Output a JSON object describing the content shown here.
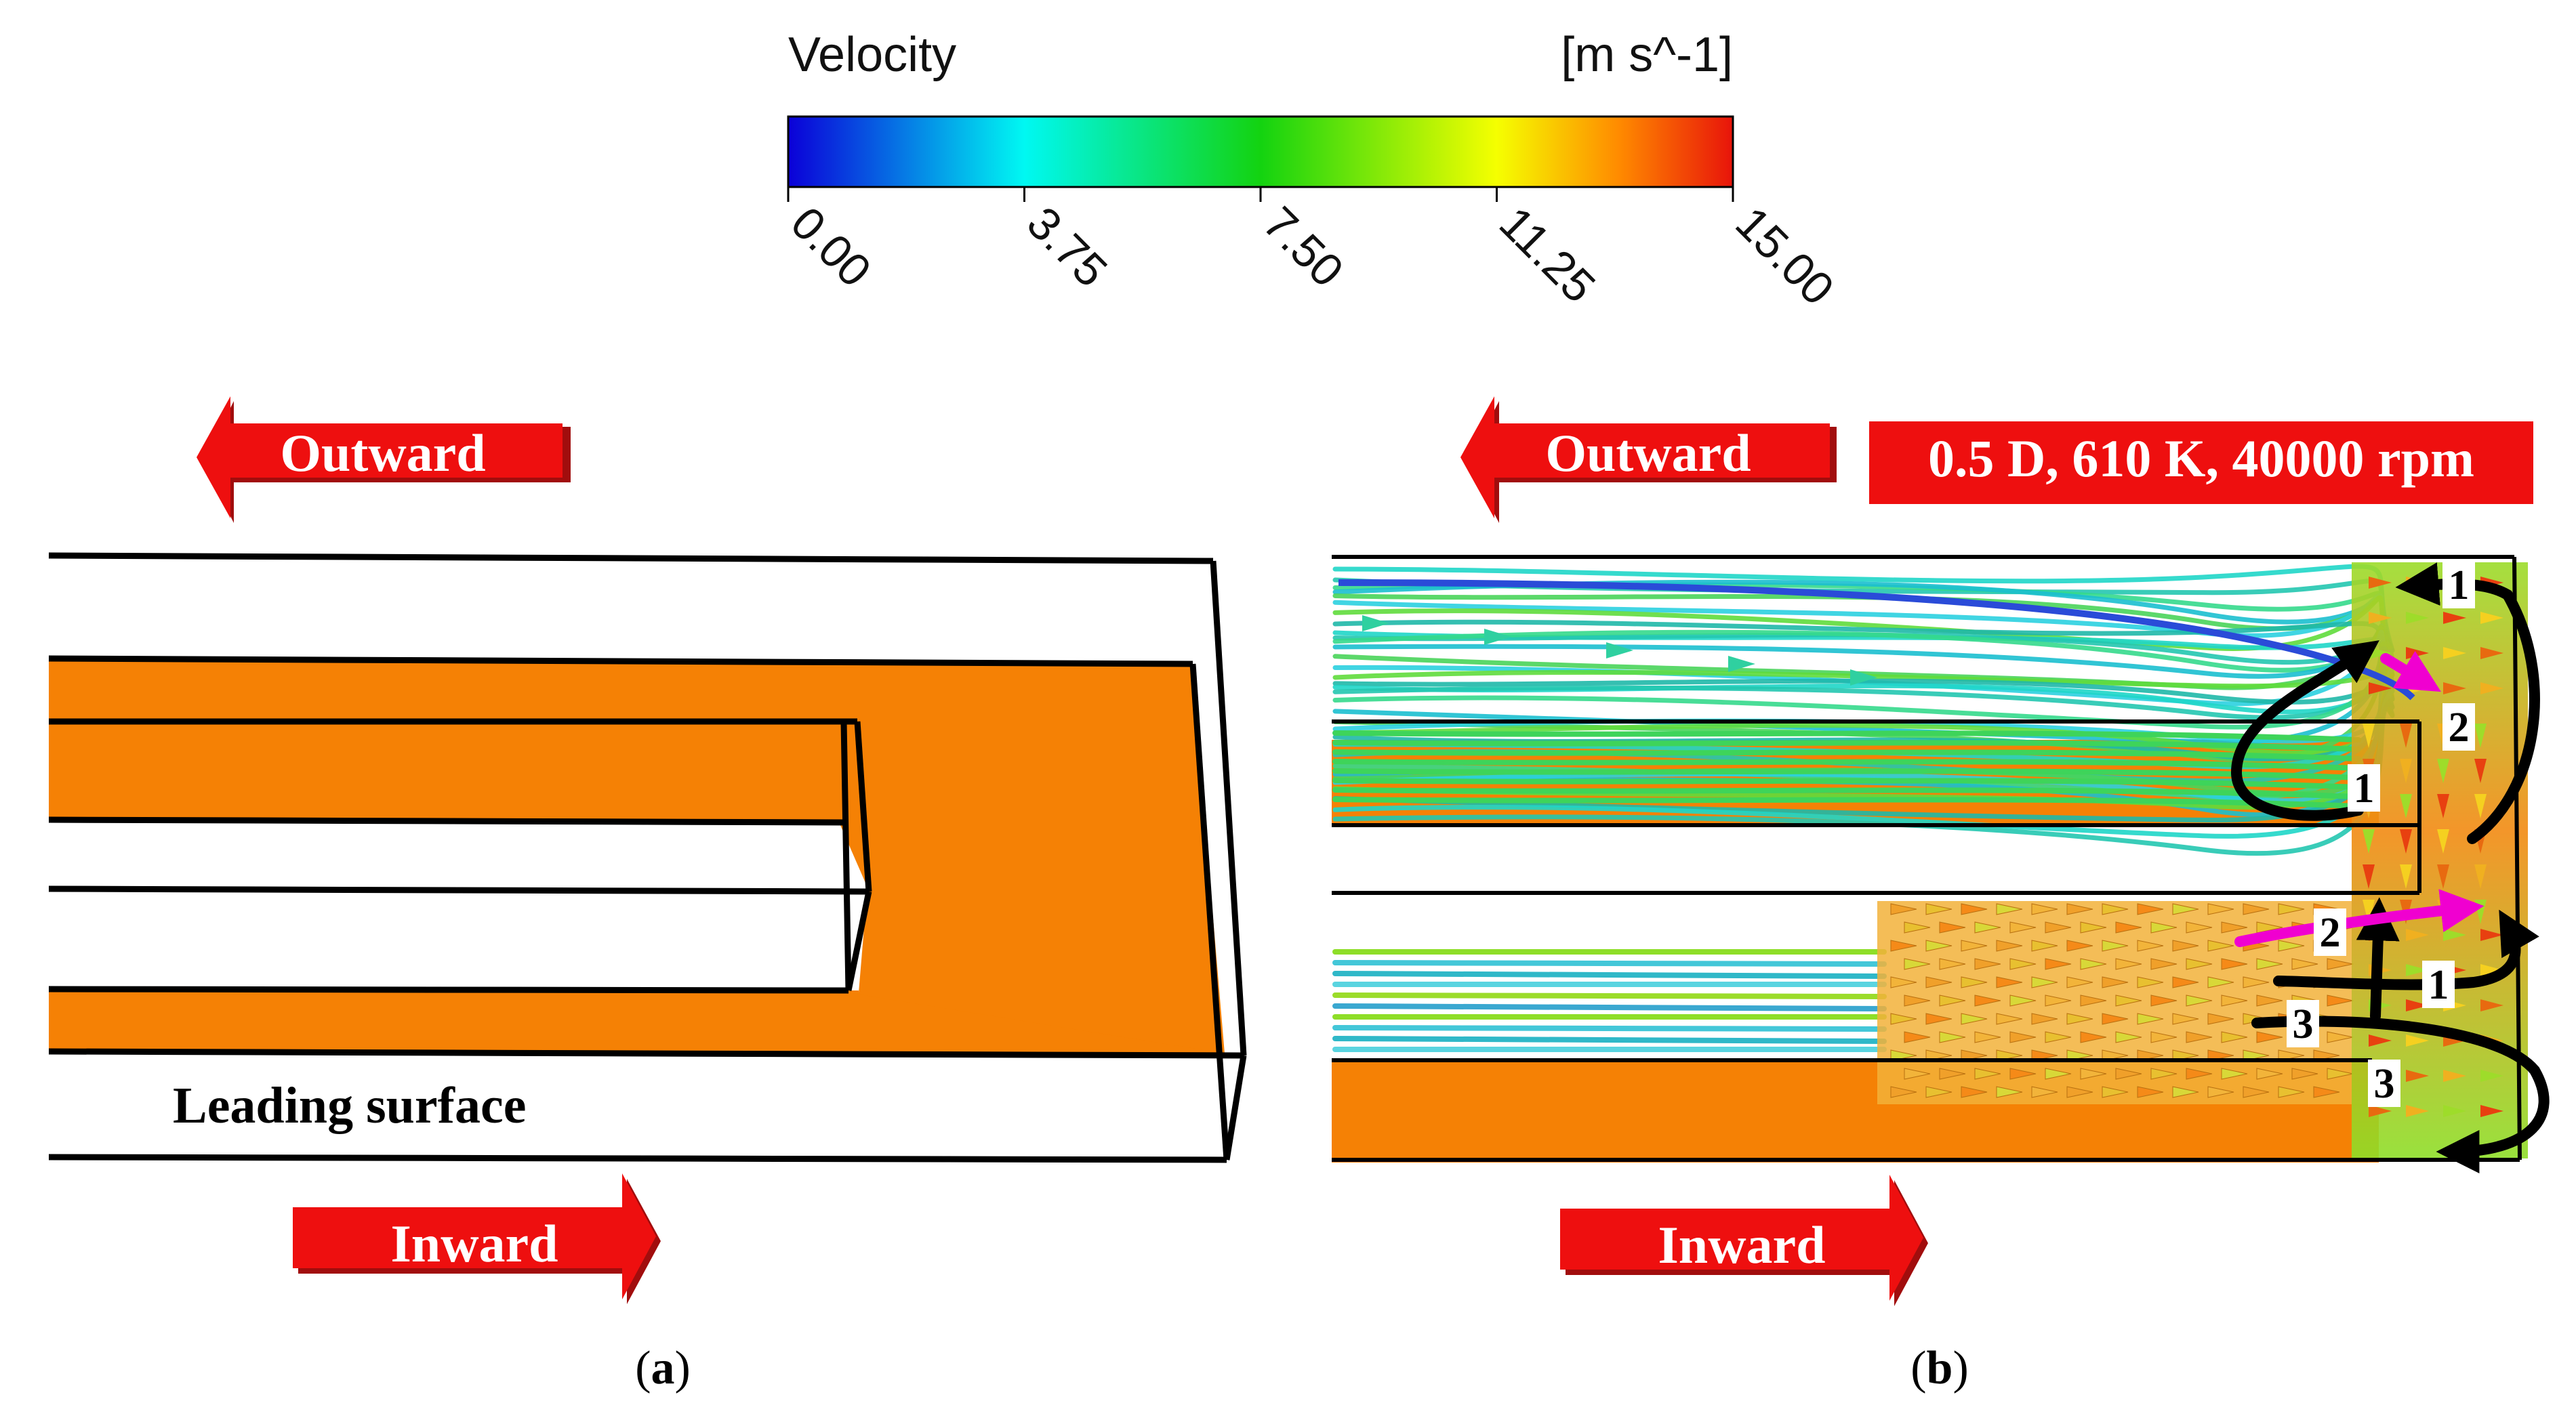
{
  "colorbar": {
    "title": "Velocity",
    "unit": "[m s^-1]",
    "ticks": [
      "0.00",
      "3.75",
      "7.50",
      "11.25",
      "15.00"
    ],
    "min": 0,
    "max": 15,
    "colors": [
      "#0b00d8",
      "#00f8f2",
      "#13d310",
      "#f5ff00",
      "#ff8a00",
      "#e8140a"
    ]
  },
  "panel_a": {
    "outward_label": "Outward",
    "inward_label": "Inward",
    "surface_label": "Leading surface",
    "caption_open": "(",
    "caption_letter": "a",
    "caption_close": ")"
  },
  "panel_b": {
    "outward_label": "Outward",
    "inward_label": "Inward",
    "condition_label": "0.5 D, 610 K, 40000 rpm",
    "markers": [
      "1",
      "1",
      "2",
      "2",
      "1",
      "3",
      "3"
    ],
    "caption_open": "(",
    "caption_letter": "b",
    "caption_close": ")"
  },
  "colors": {
    "surface": "#f58105",
    "arrow": "#ee0f0f",
    "outline": "#000000",
    "vortex_accent": "#f000d0"
  }
}
